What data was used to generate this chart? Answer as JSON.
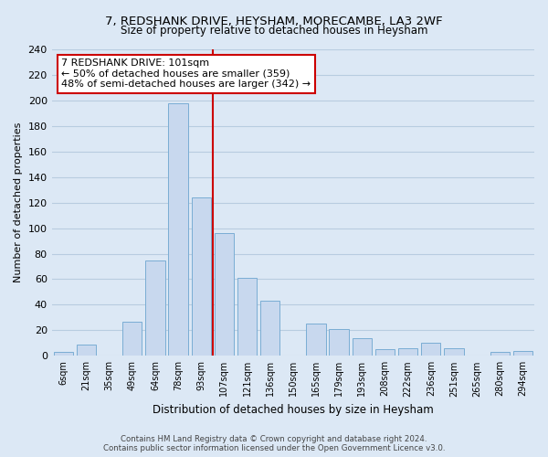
{
  "title": "7, REDSHANK DRIVE, HEYSHAM, MORECAMBE, LA3 2WF",
  "subtitle": "Size of property relative to detached houses in Heysham",
  "xlabel": "Distribution of detached houses by size in Heysham",
  "ylabel": "Number of detached properties",
  "bin_labels": [
    "6sqm",
    "21sqm",
    "35sqm",
    "49sqm",
    "64sqm",
    "78sqm",
    "93sqm",
    "107sqm",
    "121sqm",
    "136sqm",
    "150sqm",
    "165sqm",
    "179sqm",
    "193sqm",
    "208sqm",
    "222sqm",
    "236sqm",
    "251sqm",
    "265sqm",
    "280sqm",
    "294sqm"
  ],
  "bar_values": [
    3,
    9,
    0,
    27,
    75,
    198,
    124,
    96,
    61,
    43,
    0,
    25,
    21,
    14,
    5,
    6,
    10,
    6,
    0,
    3,
    4
  ],
  "bar_color": "#c8d8ee",
  "bar_edge_color": "#7aadd4",
  "ylim": [
    0,
    240
  ],
  "yticks": [
    0,
    20,
    40,
    60,
    80,
    100,
    120,
    140,
    160,
    180,
    200,
    220,
    240
  ],
  "annotation_box_title": "7 REDSHANK DRIVE: 101sqm",
  "annotation_line1": "← 50% of detached houses are smaller (359)",
  "annotation_line2": "48% of semi-detached houses are larger (342) →",
  "vline_x": 6.5,
  "vline_color": "#cc0000",
  "footer1": "Contains HM Land Registry data © Crown copyright and database right 2024.",
  "footer2": "Contains public sector information licensed under the Open Government Licence v3.0.",
  "bg_color": "#dce8f5",
  "plot_bg_color": "#dce8f5",
  "grid_color": "#b8cce0"
}
